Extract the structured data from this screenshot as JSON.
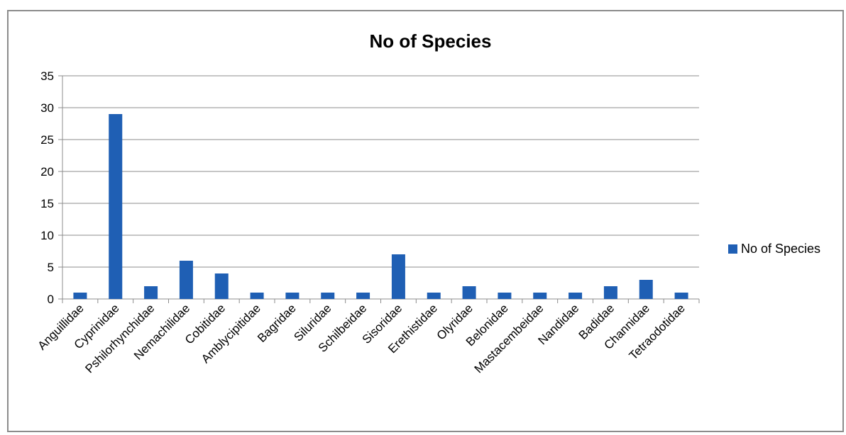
{
  "chart_data": {
    "type": "bar",
    "title": "No of Species",
    "categories": [
      "Anguillidae",
      "Cyprinidae",
      "Pshilorhynchidae",
      "Nemachilidae",
      "Cobitidae",
      "Amblycipitidae",
      "Bagridae",
      "Siluridae",
      "Schilbeidae",
      "Sisoridae",
      "Erethistidae",
      "Olyridae",
      "Belonidae",
      "Mastacembeidae",
      "Nandidae",
      "Badidae",
      "Channidae",
      "Tetraodotidae"
    ],
    "series": [
      {
        "name": "No of Species",
        "values": [
          1,
          29,
          2,
          6,
          4,
          1,
          1,
          1,
          1,
          7,
          1,
          2,
          1,
          1,
          1,
          2,
          3,
          1
        ]
      }
    ],
    "ylim": [
      0,
      35
    ],
    "yticks": [
      0,
      5,
      10,
      15,
      20,
      25,
      30,
      35
    ],
    "grid": true,
    "legend": "right",
    "colors": {
      "bar": "#1f5fb4",
      "grid": "#8c8c8c",
      "axis": "#8c8c8c"
    }
  }
}
